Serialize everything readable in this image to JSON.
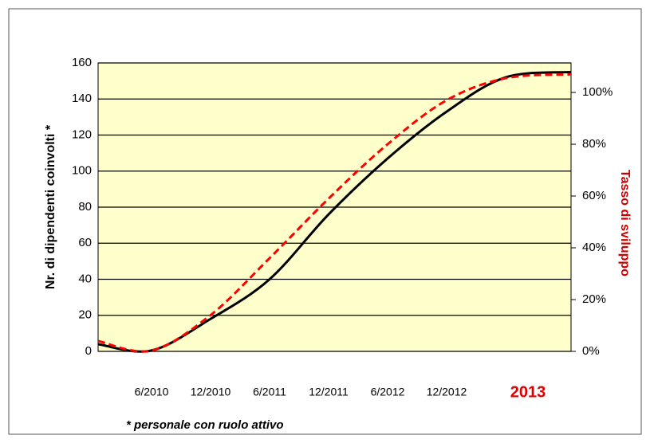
{
  "chart_data": {
    "type": "line",
    "y_label": "Nr. di dipendenti coinvolti *",
    "y2_label": "Tasso di sviluppo",
    "footnote": "* personale con ruolo  attivo",
    "categories": [
      null,
      "6/2010",
      "12/2010",
      "6/2011",
      "12/2011",
      "6/2012",
      "12/2012",
      "2013",
      null
    ],
    "series": [
      {
        "color": "#000000",
        "dash": false,
        "values": [
          4,
          0.5,
          18,
          40,
          76,
          107,
          133,
          152,
          155
        ]
      },
      {
        "color": "#ff0000",
        "dash": true,
        "axis": "y2",
        "values": [
          4,
          0.3,
          14,
          36,
          59,
          80,
          97,
          105.5,
          107
        ]
      }
    ],
    "ylim": [
      0,
      160
    ],
    "yticks": [
      0,
      20,
      40,
      60,
      80,
      100,
      120,
      140,
      160
    ],
    "y2lim": [
      0,
      111.4
    ],
    "y2ticks": [
      {
        "value": 0,
        "label": "0%"
      },
      {
        "value": 20,
        "label": "20%"
      },
      {
        "value": 40,
        "label": "40%"
      },
      {
        "value": 60,
        "label": "60%"
      },
      {
        "value": 80,
        "label": "80%"
      },
      {
        "value": 100,
        "label": "100%"
      }
    ],
    "grid": true,
    "plot_color": "#ffffcc"
  }
}
